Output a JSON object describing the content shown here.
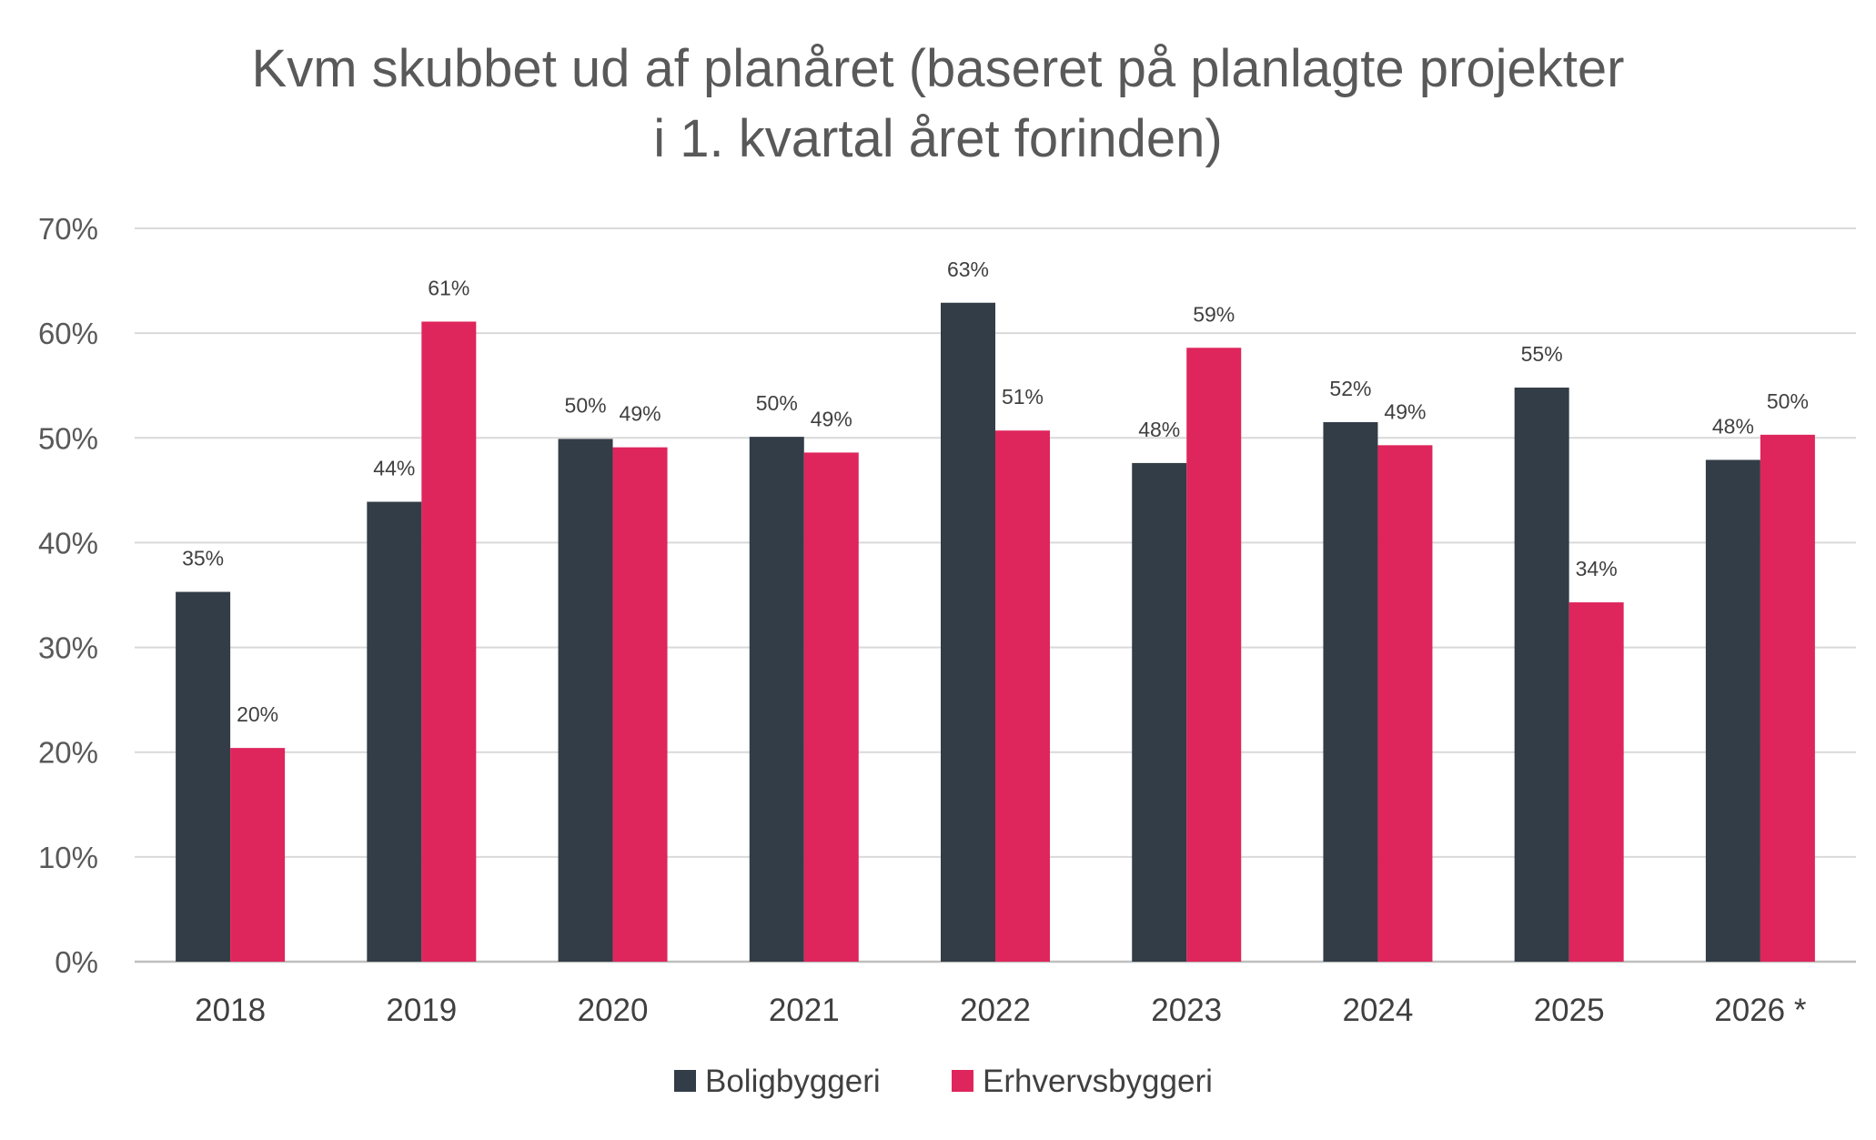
{
  "chart_data": {
    "type": "bar",
    "title_lines": [
      "Kvm skubbet ud af planåret (baseret på planlagte projekter",
      "i 1. kvartal året forinden)"
    ],
    "categories": [
      "2018",
      "2019",
      "2020",
      "2021",
      "2022",
      "2023",
      "2024",
      "2025",
      "2026 *"
    ],
    "series": [
      {
        "name": "Boligbyggeri",
        "color": "#333d47",
        "values": [
          35.3,
          43.9,
          49.9,
          50.1,
          62.9,
          47.6,
          51.5,
          54.8,
          47.9
        ],
        "labels": [
          "35%",
          "44%",
          "50%",
          "50%",
          "63%",
          "48%",
          "52%",
          "55%",
          "48%"
        ]
      },
      {
        "name": "Erhvervsbyggeri",
        "color": "#de265c",
        "values": [
          20.4,
          61.1,
          49.1,
          48.6,
          50.7,
          58.6,
          49.3,
          34.3,
          50.3
        ],
        "labels": [
          "20%",
          "61%",
          "49%",
          "49%",
          "51%",
          "59%",
          "49%",
          "34%",
          "50%"
        ]
      }
    ],
    "y_ticks": [
      "0%",
      "10%",
      "20%",
      "30%",
      "40%",
      "50%",
      "60%",
      "70%"
    ],
    "ylim": [
      0,
      70
    ],
    "grid": true,
    "legend_position": "bottom"
  }
}
